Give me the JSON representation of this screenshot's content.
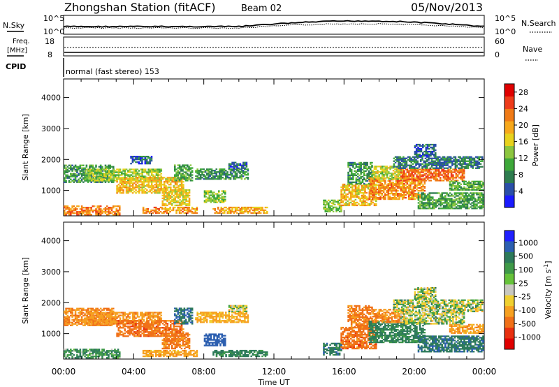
{
  "header": {
    "station": "Zhongshan Station (fitACF)",
    "beam": "Beam 02",
    "date": "05/Nov/2013"
  },
  "mini_panels": {
    "nsky_label": "N.Sky",
    "nsearch_label": "N.Search",
    "nsky_ticks": [
      "10^5",
      "10^0"
    ],
    "nsearch_ticks": [
      "10^5",
      "10^0"
    ],
    "freq_label_line1": "Freq.",
    "freq_label_line2": "[MHz]",
    "freq_ticks": [
      "18",
      "8"
    ],
    "nave_label": "Nave",
    "nave_ticks": [
      "60",
      "0"
    ],
    "cpid_label": "CPID",
    "cpid_text": "normal (fast stereo) 153"
  },
  "colors": {
    "power_scale": [
      "#1a1aff",
      "#2a4fa8",
      "#2e7d4f",
      "#3ea83a",
      "#8cc63f",
      "#e8d21d",
      "#f7a81b",
      "#f07a16",
      "#ee3b1a",
      "#e00000"
    ],
    "velocity_scale": [
      "#2020ff",
      "#2c5fb0",
      "#2d7a5a",
      "#3f9a48",
      "#66c23a",
      "#c8c8c0",
      "#f0d030",
      "#f6a020",
      "#f07018",
      "#e83010",
      "#e00000"
    ]
  },
  "chart_data": [
    {
      "type": "heatmap",
      "title": "Power",
      "xlabel": "Time UT",
      "ylabel": "Slant Range [km]",
      "x_ticks": [
        "00:00",
        "04:00",
        "08:00",
        "12:00",
        "16:00",
        "20:00",
        "00:00"
      ],
      "y_ticks": [
        1000,
        2000,
        3000,
        4000
      ],
      "ylim": [
        180,
        4600
      ],
      "colorbar": {
        "label": "Power [dB]",
        "ticks": [
          4,
          8,
          12,
          16,
          20,
          24,
          28
        ],
        "range": [
          0,
          30
        ]
      },
      "echo_regions": [
        {
          "t0": 0.0,
          "t1": 3.2,
          "r0": 200,
          "r1": 500,
          "value": 22
        },
        {
          "t0": 0.0,
          "t1": 2.8,
          "r0": 1250,
          "r1": 1800,
          "value": 9
        },
        {
          "t0": 1.2,
          "t1": 5.6,
          "r0": 1300,
          "r1": 1700,
          "value": 14
        },
        {
          "t0": 3.0,
          "t1": 6.8,
          "r0": 900,
          "r1": 1400,
          "value": 18
        },
        {
          "t0": 3.8,
          "t1": 5.0,
          "r0": 1850,
          "r1": 2100,
          "value": 6
        },
        {
          "t0": 5.6,
          "t1": 7.2,
          "r0": 500,
          "r1": 1000,
          "value": 17
        },
        {
          "t0": 4.5,
          "t1": 7.6,
          "r0": 250,
          "r1": 450,
          "value": 21
        },
        {
          "t0": 6.3,
          "t1": 7.3,
          "r0": 1300,
          "r1": 1800,
          "value": 10
        },
        {
          "t0": 7.5,
          "t1": 10.5,
          "r0": 1350,
          "r1": 1700,
          "value": 9
        },
        {
          "t0": 8.0,
          "t1": 9.2,
          "r0": 600,
          "r1": 1000,
          "value": 13
        },
        {
          "t0": 8.5,
          "t1": 11.6,
          "r0": 250,
          "r1": 450,
          "value": 20
        },
        {
          "t0": 9.4,
          "t1": 10.4,
          "r0": 1700,
          "r1": 1900,
          "value": 6
        },
        {
          "t0": 14.8,
          "t1": 15.8,
          "r0": 300,
          "r1": 700,
          "value": 13
        },
        {
          "t0": 15.8,
          "t1": 17.8,
          "r0": 500,
          "r1": 1200,
          "value": 18
        },
        {
          "t0": 16.2,
          "t1": 17.6,
          "r0": 1200,
          "r1": 1900,
          "value": 9
        },
        {
          "t0": 17.4,
          "t1": 20.6,
          "r0": 700,
          "r1": 1400,
          "value": 21
        },
        {
          "t0": 17.6,
          "t1": 19.4,
          "r0": 1350,
          "r1": 1800,
          "value": 15
        },
        {
          "t0": 19.2,
          "t1": 22.8,
          "r0": 1300,
          "r1": 1700,
          "value": 23
        },
        {
          "t0": 18.8,
          "t1": 23.9,
          "r0": 1700,
          "r1": 2100,
          "value": 7
        },
        {
          "t0": 20.0,
          "t1": 21.2,
          "r0": 2100,
          "r1": 2500,
          "value": 6
        },
        {
          "t0": 20.2,
          "t1": 23.9,
          "r0": 400,
          "r1": 900,
          "value": 10
        },
        {
          "t0": 22.0,
          "t1": 23.9,
          "r0": 1000,
          "r1": 1300,
          "value": 11
        }
      ]
    },
    {
      "type": "heatmap",
      "title": "Velocity",
      "xlabel": "Time UT",
      "ylabel": "Slant Range [km]",
      "x_ticks": [
        "00:00",
        "04:00",
        "08:00",
        "12:00",
        "16:00",
        "20:00",
        "00:00"
      ],
      "y_ticks": [
        1000,
        2000,
        3000,
        4000
      ],
      "ylim": [
        180,
        4600
      ],
      "colorbar": {
        "label": "Velocity [m s^-1]",
        "ticks": [
          "1000",
          "500",
          "100",
          "25",
          "-25",
          "-100",
          "-500",
          "-1000"
        ]
      },
      "echo_regions": [
        {
          "t0": 0.0,
          "t1": 3.2,
          "r0": 200,
          "r1": 500,
          "value": 120
        },
        {
          "t0": 0.0,
          "t1": 2.8,
          "r0": 1250,
          "r1": 1800,
          "value": -300
        },
        {
          "t0": 1.2,
          "t1": 5.6,
          "r0": 1300,
          "r1": 1700,
          "value": -250
        },
        {
          "t0": 3.0,
          "t1": 6.8,
          "r0": 900,
          "r1": 1400,
          "value": -400
        },
        {
          "t0": 5.6,
          "t1": 7.2,
          "r0": 500,
          "r1": 1000,
          "value": -350
        },
        {
          "t0": 4.5,
          "t1": 7.6,
          "r0": 250,
          "r1": 450,
          "value": -200
        },
        {
          "t0": 6.3,
          "t1": 7.3,
          "r0": 1300,
          "r1": 1800,
          "value": 300
        },
        {
          "t0": 7.5,
          "t1": 10.5,
          "r0": 1350,
          "r1": 1700,
          "value": -150
        },
        {
          "t0": 8.0,
          "t1": 9.2,
          "r0": 600,
          "r1": 1000,
          "value": 450
        },
        {
          "t0": 8.5,
          "t1": 11.6,
          "r0": 250,
          "r1": 450,
          "value": 150
        },
        {
          "t0": 9.4,
          "t1": 10.4,
          "r0": 1700,
          "r1": 1900,
          "value": 0
        },
        {
          "t0": 14.8,
          "t1": 15.8,
          "r0": 300,
          "r1": 700,
          "value": 200
        },
        {
          "t0": 15.8,
          "t1": 17.8,
          "r0": 500,
          "r1": 1200,
          "value": -400
        },
        {
          "t0": 16.2,
          "t1": 17.6,
          "r0": 1200,
          "r1": 1900,
          "value": -350
        },
        {
          "t0": 17.4,
          "t1": 20.6,
          "r0": 700,
          "r1": 1400,
          "value": 150
        },
        {
          "t0": 17.6,
          "t1": 19.4,
          "r0": 1350,
          "r1": 1800,
          "value": -300
        },
        {
          "t0": 19.2,
          "t1": 22.8,
          "r0": 1300,
          "r1": 1700,
          "value": 5
        },
        {
          "t0": 18.8,
          "t1": 23.9,
          "r0": 1700,
          "r1": 2100,
          "value": 10
        },
        {
          "t0": 20.0,
          "t1": 21.2,
          "r0": 2100,
          "r1": 2500,
          "value": 0
        },
        {
          "t0": 20.2,
          "t1": 23.9,
          "r0": 400,
          "r1": 900,
          "value": 250
        },
        {
          "t0": 22.0,
          "t1": 23.9,
          "r0": 1000,
          "r1": 1300,
          "value": -200
        }
      ]
    }
  ]
}
